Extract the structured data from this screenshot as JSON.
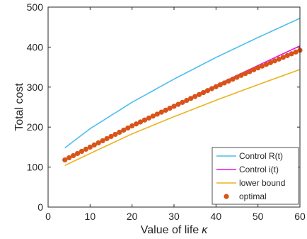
{
  "chart_data": {
    "type": "line",
    "xlabel": "Value of life",
    "xlabel_symbol": "κ",
    "ylabel": "Total cost",
    "xlim": [
      0,
      60
    ],
    "ylim": [
      0,
      500
    ],
    "xticks": [
      0,
      10,
      20,
      30,
      40,
      50,
      60
    ],
    "yticks": [
      0,
      100,
      200,
      300,
      400,
      500
    ],
    "grid": false,
    "legend_position": "bottom-right",
    "series": [
      {
        "name": "Control R(t)",
        "style": "line",
        "color": "#4DBEEE",
        "x": [
          4,
          10,
          20,
          30,
          40,
          50,
          60
        ],
        "y": [
          148,
          196,
          262,
          320,
          374,
          424,
          472
        ]
      },
      {
        "name": "Control i(t)",
        "style": "line",
        "color": "#E617E6",
        "x": [
          4,
          10,
          20,
          30,
          40,
          50,
          60
        ],
        "y": [
          118,
          150,
          203,
          253,
          304,
          354,
          403
        ]
      },
      {
        "name": "lower bound",
        "style": "line",
        "color": "#EDB120",
        "x": [
          4,
          10,
          20,
          30,
          40,
          50,
          60
        ],
        "y": [
          104,
          134,
          183,
          226,
          267,
          306,
          344
        ]
      },
      {
        "name": "optimal",
        "style": "markers",
        "color": "#D95319",
        "x": [
          4,
          10,
          20,
          30,
          40,
          50,
          60
        ],
        "y": [
          118,
          150,
          203,
          252,
          301,
          348,
          392
        ]
      }
    ]
  }
}
